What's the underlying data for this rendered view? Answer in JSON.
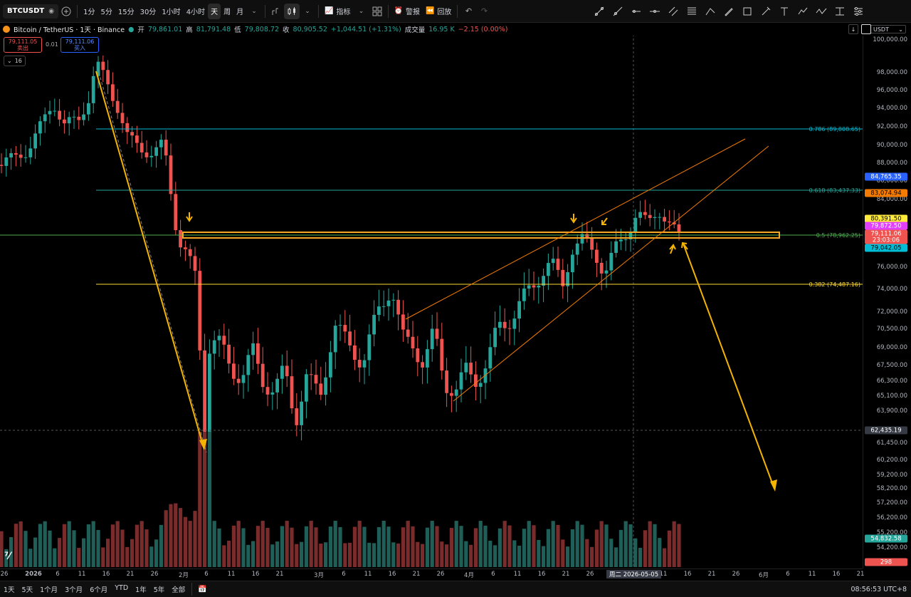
{
  "toolbar": {
    "symbol": "BTCUSDT",
    "intervals": [
      "1分",
      "5分",
      "15分",
      "30分",
      "1小时",
      "4小时",
      "天",
      "周",
      "月"
    ],
    "active_interval": "天",
    "indicators_label": "指标",
    "alert_label": "警报",
    "replay_label": "回放"
  },
  "legend": {
    "title": "Bitcoin / TetherUS · 1天 · Binance",
    "open_label": "开",
    "open": "79,861.01",
    "high_label": "高",
    "high": "81,791.48",
    "low_label": "低",
    "low": "79,808.72",
    "close_label": "收",
    "close": "80,905.52",
    "change": "+1,044.51 (+1.31%)",
    "volume_label": "成交量",
    "volume": "16.95 K",
    "volume_change": "−2.15 (0.00%)"
  },
  "trade": {
    "sell_price": "79,111.05",
    "sell_label": "卖出",
    "spread": "0.01",
    "buy_price": "79,111.06",
    "buy_label": "买入",
    "qty": "16"
  },
  "price_axis": {
    "currency": "USDT",
    "ticks": [
      "100,000.00",
      "98,000.00",
      "96,000.00",
      "94,000.00",
      "92,000.00",
      "90,000.00",
      "88,000.00",
      "86,000.00",
      "84,000.00",
      "82,000.00",
      "76,000.00",
      "74,000.00",
      "72,000.00",
      "70,500.00",
      "69,000.00",
      "67,500.00",
      "66,300.00",
      "65,100.00",
      "63,900.00",
      "61,450.00",
      "60,200.00",
      "59,200.00",
      "58,200.00",
      "57,200.00",
      "56,200.00",
      "55,200.00",
      "54,200.00"
    ],
    "labels": [
      {
        "text": "84,765.35",
        "bg": "#2962ff",
        "fg": "#ffffff"
      },
      {
        "text": "83,074.94",
        "bg": "#f57c00",
        "fg": "#000000"
      },
      {
        "text": "80,391.50",
        "bg": "#ffeb3b",
        "fg": "#000000"
      },
      {
        "text": "79,872.50",
        "bg": "#e040fb",
        "fg": "#ffffff"
      },
      {
        "text": "79,111.06",
        "bg": "#ef5350",
        "fg": "#ffffff"
      },
      {
        "text": "23:03:06",
        "bg": "#ef5350",
        "fg": "#ffffff"
      },
      {
        "text": "79,042.05",
        "bg": "#00bcd4",
        "fg": "#000000"
      },
      {
        "text": "62,435.19",
        "bg": "#363a45",
        "fg": "#ffffff"
      },
      {
        "text": "54,832.58",
        "bg": "#26a69a",
        "fg": "#ffffff"
      },
      {
        "text": "298",
        "bg": "#ef5350",
        "fg": "#ffffff"
      }
    ]
  },
  "fib": {
    "l786": "0.786 (89,808.65)",
    "l618": "0.618 (83,437.33)",
    "l5": "0.5 (78,962.25)",
    "l382": "0.382 (74,487.16)"
  },
  "time_axis": {
    "ticks": [
      "26",
      "2026",
      "6",
      "11",
      "16",
      "21",
      "26",
      "2月",
      "6",
      "11",
      "16",
      "21",
      "3月",
      "6",
      "11",
      "16",
      "21",
      "26",
      "4月",
      "6",
      "11",
      "16",
      "21",
      "26",
      "11",
      "16",
      "21",
      "26",
      "6月",
      "6",
      "11",
      "16",
      "21"
    ],
    "crosshair_label": "周二 2026-05-05"
  },
  "bottom_bar": {
    "ranges": [
      "1天",
      "5天",
      "1个月",
      "3个月",
      "6个月",
      "YTD",
      "1年",
      "5年",
      "全部"
    ],
    "clock": "08:56:53 UTC+8"
  },
  "colors": {
    "up": "#26a69a",
    "down": "#ef5350"
  }
}
